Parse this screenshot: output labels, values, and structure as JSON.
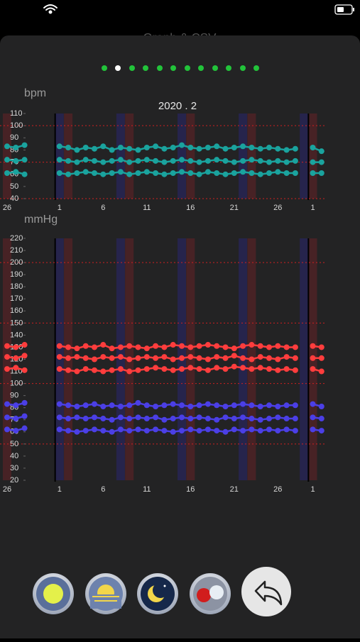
{
  "header": {
    "title": "Graph & CSV"
  },
  "chart_data": [
    {
      "type": "line",
      "title": "2020 . 2",
      "y_label": "bpm",
      "categories": [
        "26",
        null,
        null,
        null,
        null,
        null,
        "1",
        null,
        null,
        null,
        null,
        "6",
        null,
        null,
        null,
        null,
        "11",
        null,
        null,
        null,
        null,
        "16",
        null,
        null,
        null,
        null,
        "21",
        null,
        null,
        null,
        null,
        "26",
        null,
        null,
        null,
        "1",
        null
      ],
      "ylim": [
        40,
        110
      ],
      "yticks": [
        40,
        50,
        60,
        70,
        80,
        90,
        100,
        110
      ],
      "reference_lines": [
        40,
        70,
        100
      ],
      "series": [
        {
          "color": "#1aa39e",
          "values": [
            83,
            82,
            84,
            null,
            null,
            null,
            83,
            82,
            80,
            82,
            81,
            83,
            80,
            82,
            81,
            80,
            82,
            83,
            81,
            82,
            84,
            82,
            81,
            82,
            83,
            81,
            82,
            83,
            82,
            81,
            82,
            81,
            80,
            81,
            null,
            82,
            79
          ]
        },
        {
          "color": "#1aa39e",
          "values": [
            72,
            71,
            72,
            null,
            null,
            null,
            72,
            71,
            70,
            72,
            71,
            70,
            71,
            72,
            70,
            71,
            72,
            71,
            70,
            71,
            72,
            71,
            70,
            71,
            72,
            71,
            70,
            71,
            72,
            71,
            70,
            71,
            70,
            71,
            null,
            70,
            70
          ]
        },
        {
          "color": "#1aa39e",
          "values": [
            61,
            62,
            60,
            null,
            null,
            null,
            61,
            60,
            61,
            62,
            61,
            60,
            61,
            62,
            60,
            61,
            62,
            61,
            60,
            61,
            62,
            61,
            60,
            62,
            61,
            60,
            61,
            62,
            61,
            60,
            61,
            62,
            61,
            61,
            null,
            61,
            61
          ]
        }
      ]
    },
    {
      "type": "line",
      "y_label": "mmHg",
      "categories": [
        "26",
        null,
        null,
        null,
        null,
        null,
        "1",
        null,
        null,
        null,
        null,
        "6",
        null,
        null,
        null,
        null,
        "11",
        null,
        null,
        null,
        null,
        "16",
        null,
        null,
        null,
        null,
        "21",
        null,
        null,
        null,
        null,
        "26",
        null,
        null,
        null,
        "1",
        null
      ],
      "ylim": [
        20,
        220
      ],
      "yticks": [
        20,
        30,
        40,
        50,
        60,
        70,
        80,
        90,
        100,
        110,
        120,
        130,
        140,
        150,
        160,
        170,
        180,
        190,
        200,
        210,
        220
      ],
      "reference_lines": [
        50,
        100,
        150,
        200
      ],
      "series": [
        {
          "color": "#ff3d3d",
          "values": [
            131,
            130,
            132,
            null,
            null,
            null,
            131,
            130,
            129,
            131,
            130,
            132,
            129,
            130,
            131,
            130,
            129,
            131,
            130,
            132,
            131,
            130,
            131,
            132,
            131,
            130,
            129,
            131,
            132,
            131,
            130,
            131,
            130,
            130,
            null,
            131,
            130
          ]
        },
        {
          "color": "#ff3d3d",
          "values": [
            122,
            121,
            123,
            null,
            null,
            null,
            122,
            121,
            122,
            121,
            120,
            122,
            121,
            122,
            120,
            121,
            122,
            121,
            122,
            120,
            121,
            122,
            121,
            120,
            122,
            121,
            123,
            121,
            120,
            122,
            121,
            120,
            122,
            121,
            null,
            121,
            121
          ]
        },
        {
          "color": "#ff3d3d",
          "values": [
            112,
            113,
            111,
            null,
            null,
            null,
            112,
            111,
            110,
            112,
            111,
            110,
            111,
            112,
            110,
            111,
            112,
            113,
            112,
            111,
            112,
            113,
            112,
            111,
            113,
            112,
            114,
            113,
            112,
            113,
            112,
            111,
            112,
            111,
            null,
            112,
            110
          ]
        },
        {
          "color": "#4b3fe6",
          "values": [
            83,
            82,
            84,
            null,
            null,
            null,
            83,
            82,
            81,
            82,
            83,
            81,
            82,
            81,
            82,
            84,
            82,
            81,
            82,
            83,
            82,
            81,
            82,
            83,
            82,
            81,
            82,
            83,
            82,
            81,
            82,
            81,
            82,
            82,
            null,
            83,
            81
          ]
        },
        {
          "color": "#4b3fe6",
          "values": [
            72,
            71,
            73,
            null,
            null,
            null,
            72,
            71,
            72,
            71,
            72,
            71,
            70,
            72,
            71,
            72,
            71,
            72,
            70,
            71,
            72,
            71,
            72,
            71,
            70,
            72,
            71,
            72,
            71,
            70,
            71,
            72,
            71,
            71,
            null,
            72,
            71
          ]
        },
        {
          "color": "#4b3fe6",
          "values": [
            62,
            61,
            63,
            null,
            null,
            null,
            62,
            61,
            60,
            61,
            62,
            61,
            60,
            62,
            61,
            62,
            61,
            62,
            61,
            60,
            61,
            62,
            61,
            62,
            61,
            60,
            62,
            61,
            62,
            61,
            62,
            61,
            62,
            61,
            null,
            62,
            61
          ]
        }
      ]
    }
  ]
}
